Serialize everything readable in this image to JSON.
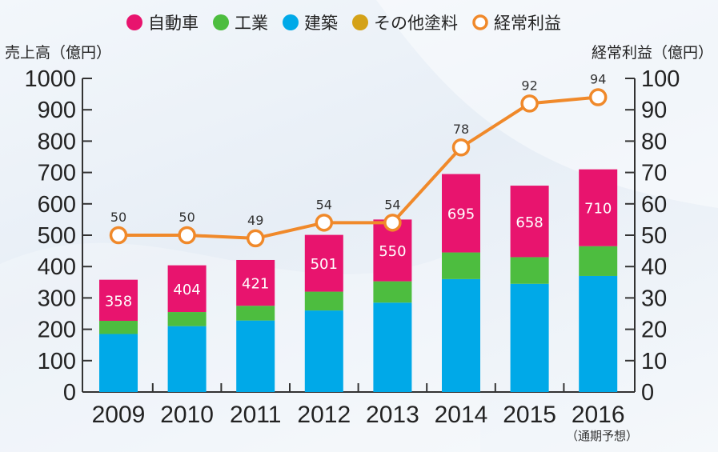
{
  "chart_data": {
    "type": "bar",
    "categories": [
      "2009",
      "2010",
      "2011",
      "2012",
      "2013",
      "2014",
      "2015",
      "2016"
    ],
    "category_note": "（通期予想）",
    "series": [
      {
        "name": "建築",
        "values": [
          185,
          210,
          228,
          260,
          285,
          360,
          345,
          370
        ],
        "color": "#00a9e8"
      },
      {
        "name": "工業",
        "values": [
          42,
          45,
          47,
          60,
          68,
          85,
          85,
          95
        ],
        "color": "#4dbd3f"
      },
      {
        "name": "その他塗料",
        "values": [
          0,
          0,
          0,
          0,
          0,
          0,
          0,
          0
        ],
        "color": "#d4a218"
      },
      {
        "name": "自動車",
        "values": [
          131,
          149,
          146,
          181,
          197,
          250,
          228,
          245
        ],
        "color": "#e8146e"
      }
    ],
    "totals": [
      358,
      404,
      421,
      501,
      550,
      695,
      658,
      710
    ],
    "line_series": {
      "name": "経常利益",
      "values": [
        50,
        50,
        49,
        54,
        54,
        78,
        92,
        94
      ],
      "color": "#f0892a"
    },
    "legend": [
      {
        "name": "自動車",
        "color": "#e8146e",
        "marker": "dot"
      },
      {
        "name": "工業",
        "color": "#4dbd3f",
        "marker": "dot"
      },
      {
        "name": "建築",
        "color": "#00a9e8",
        "marker": "dot"
      },
      {
        "name": "その他塗料",
        "color": "#d4a218",
        "marker": "dot"
      },
      {
        "name": "経常利益",
        "color": "#f0892a",
        "marker": "ring"
      }
    ],
    "ylabel_left": "売上高（億円）",
    "ylabel_right": "経常利益（億円）",
    "ylim_left": [
      0,
      1000
    ],
    "ylim_right": [
      0,
      100
    ],
    "yticks_left": [
      "0",
      "100",
      "200",
      "300",
      "400",
      "500",
      "600",
      "700",
      "800",
      "900",
      "1000"
    ],
    "yticks_right": [
      "0",
      "10",
      "20",
      "30",
      "40",
      "50",
      "60",
      "70",
      "80",
      "90",
      "100"
    ],
    "legend_position": "top",
    "grid": false
  }
}
